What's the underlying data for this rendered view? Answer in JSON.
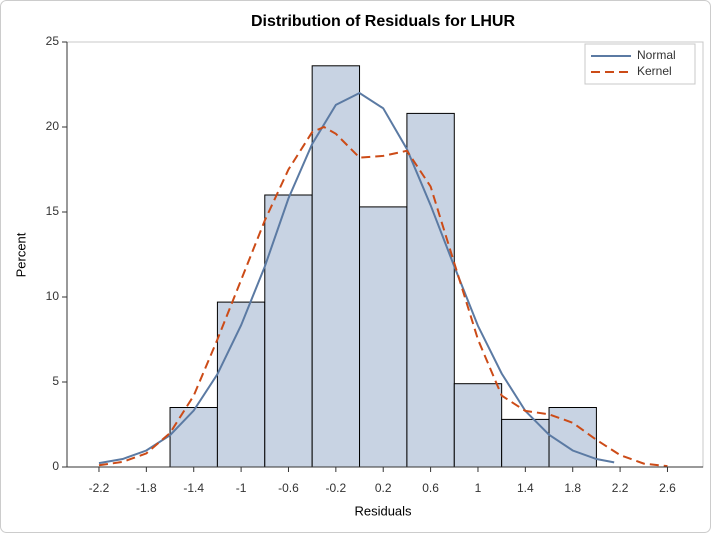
{
  "chart_data": {
    "type": "histogram",
    "title": "Distribution of Residuals for LHUR",
    "x_label": "Residuals",
    "y_label": "Percent",
    "bins": [
      -1.6,
      -1.2,
      -0.8,
      -0.4,
      0,
      0.4,
      0.8,
      1.2,
      1.6,
      2.0
    ],
    "values": [
      3.5,
      9.7,
      16,
      23.6,
      15.3,
      20.8,
      4.9,
      2.8,
      3.5
    ],
    "bar_color": "#c8d3e3",
    "series": [
      {
        "name": "Normal",
        "color": "#5b7aa3",
        "dash": "solid",
        "x": [
          -2.2,
          -2.0,
          -1.8,
          -1.6,
          -1.4,
          -1.2,
          -1.0,
          -0.8,
          -0.6,
          -0.4,
          -0.2,
          0,
          0.2,
          0.4,
          0.6,
          0.8,
          1.0,
          1.2,
          1.4,
          1.6,
          1.8,
          2.0,
          2.15
        ],
        "values": [
          0.23,
          0.47,
          0.97,
          1.87,
          3.32,
          5.46,
          8.34,
          11.79,
          15.8,
          19.0,
          21.3,
          22.0,
          21.1,
          18.7,
          15.4,
          11.8,
          8.3,
          5.5,
          3.3,
          1.9,
          0.97,
          0.47,
          0.27
        ]
      },
      {
        "name": "Kernel",
        "color": "#cc4b17",
        "dash": "dashed",
        "x": [
          -2.2,
          -2.0,
          -1.8,
          -1.6,
          -1.4,
          -1.2,
          -1.0,
          -0.8,
          -0.6,
          -0.4,
          -0.3,
          -0.2,
          0,
          0.2,
          0.4,
          0.6,
          0.8,
          1.0,
          1.2,
          1.4,
          1.6,
          1.8,
          2.0,
          2.2,
          2.4,
          2.6
        ],
        "values": [
          0.1,
          0.3,
          0.8,
          2.0,
          4.2,
          7.5,
          11,
          14.5,
          17.5,
          19.7,
          20.0,
          19.6,
          18.2,
          18.3,
          18.6,
          16.5,
          12,
          7.5,
          4.2,
          3.3,
          3.1,
          2.6,
          1.6,
          0.7,
          0.2,
          0.05
        ]
      }
    ],
    "xlim": [
      -2.47,
      2.9
    ],
    "ylim": [
      0,
      25
    ],
    "xticks": [
      -2.2,
      -1.8,
      -1.4,
      -1,
      -0.6,
      -0.2,
      0.2,
      0.6,
      1,
      1.4,
      1.8,
      2.2,
      2.6
    ],
    "yticks": [
      0,
      5,
      10,
      15,
      20,
      25
    ],
    "legend": "top-right"
  }
}
